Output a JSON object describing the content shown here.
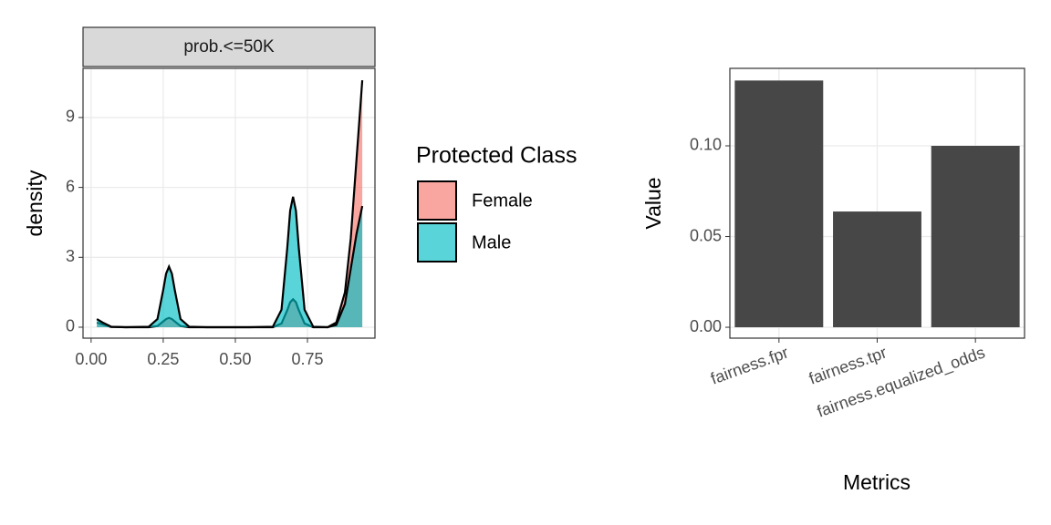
{
  "chart_data": [
    {
      "type": "area",
      "strip": "prob.<=50K",
      "y_label": "density",
      "legend_title": "Protected Class",
      "x": [
        0.02,
        0.04,
        0.07,
        0.12,
        0.2,
        0.23,
        0.25,
        0.26,
        0.27,
        0.28,
        0.29,
        0.31,
        0.34,
        0.4,
        0.55,
        0.63,
        0.66,
        0.68,
        0.69,
        0.7,
        0.71,
        0.72,
        0.74,
        0.77,
        0.82,
        0.85,
        0.88,
        0.9,
        0.92,
        0.94
      ],
      "series": [
        {
          "name": "Female",
          "color": "#F8766D",
          "values": [
            0.2,
            0.12,
            0.01,
            0,
            0,
            0.05,
            0.25,
            0.35,
            0.4,
            0.35,
            0.25,
            0.05,
            0,
            0,
            0,
            0,
            0.16,
            0.73,
            1.07,
            1.2,
            1.07,
            0.73,
            0.16,
            0,
            0,
            0.2,
            1.5,
            3.8,
            7.2,
            10.6
          ]
        },
        {
          "name": "Male",
          "color": "#00BFC4",
          "values": [
            0.35,
            0.2,
            0.02,
            0,
            0.02,
            0.35,
            1.6,
            2.3,
            2.6,
            2.3,
            1.6,
            0.35,
            0.02,
            0,
            0,
            0.02,
            0.75,
            3.4,
            5.0,
            5.6,
            5.0,
            3.4,
            0.75,
            0.02,
            0,
            0.1,
            1.0,
            2.5,
            4.0,
            5.2
          ]
        }
      ],
      "xlim": [
        -0.028,
        0.984
      ],
      "xticks": [
        {
          "value": 0,
          "label": "0.00"
        },
        0.25,
        {
          "value": 0.5,
          "label": "0.50"
        },
        0.75
      ],
      "ylim": [
        -0.47,
        11.11
      ],
      "yticks": [
        0,
        3,
        6,
        9
      ],
      "grid": true
    },
    {
      "type": "bar",
      "x_label": "Metrics",
      "y_label": "Value",
      "color": "#474747",
      "categories": [
        "fairness.fpr",
        "fairness.tpr",
        "fairness.equalized_odds"
      ],
      "values": [
        0.136,
        0.0638,
        0.1
      ],
      "ylim": [
        -0.006,
        0.1427
      ],
      "yticks": [
        {
          "value": 0,
          "label": "0.00"
        },
        0.05,
        {
          "value": 0.1,
          "label": "0.10"
        }
      ],
      "grid": true
    }
  ]
}
